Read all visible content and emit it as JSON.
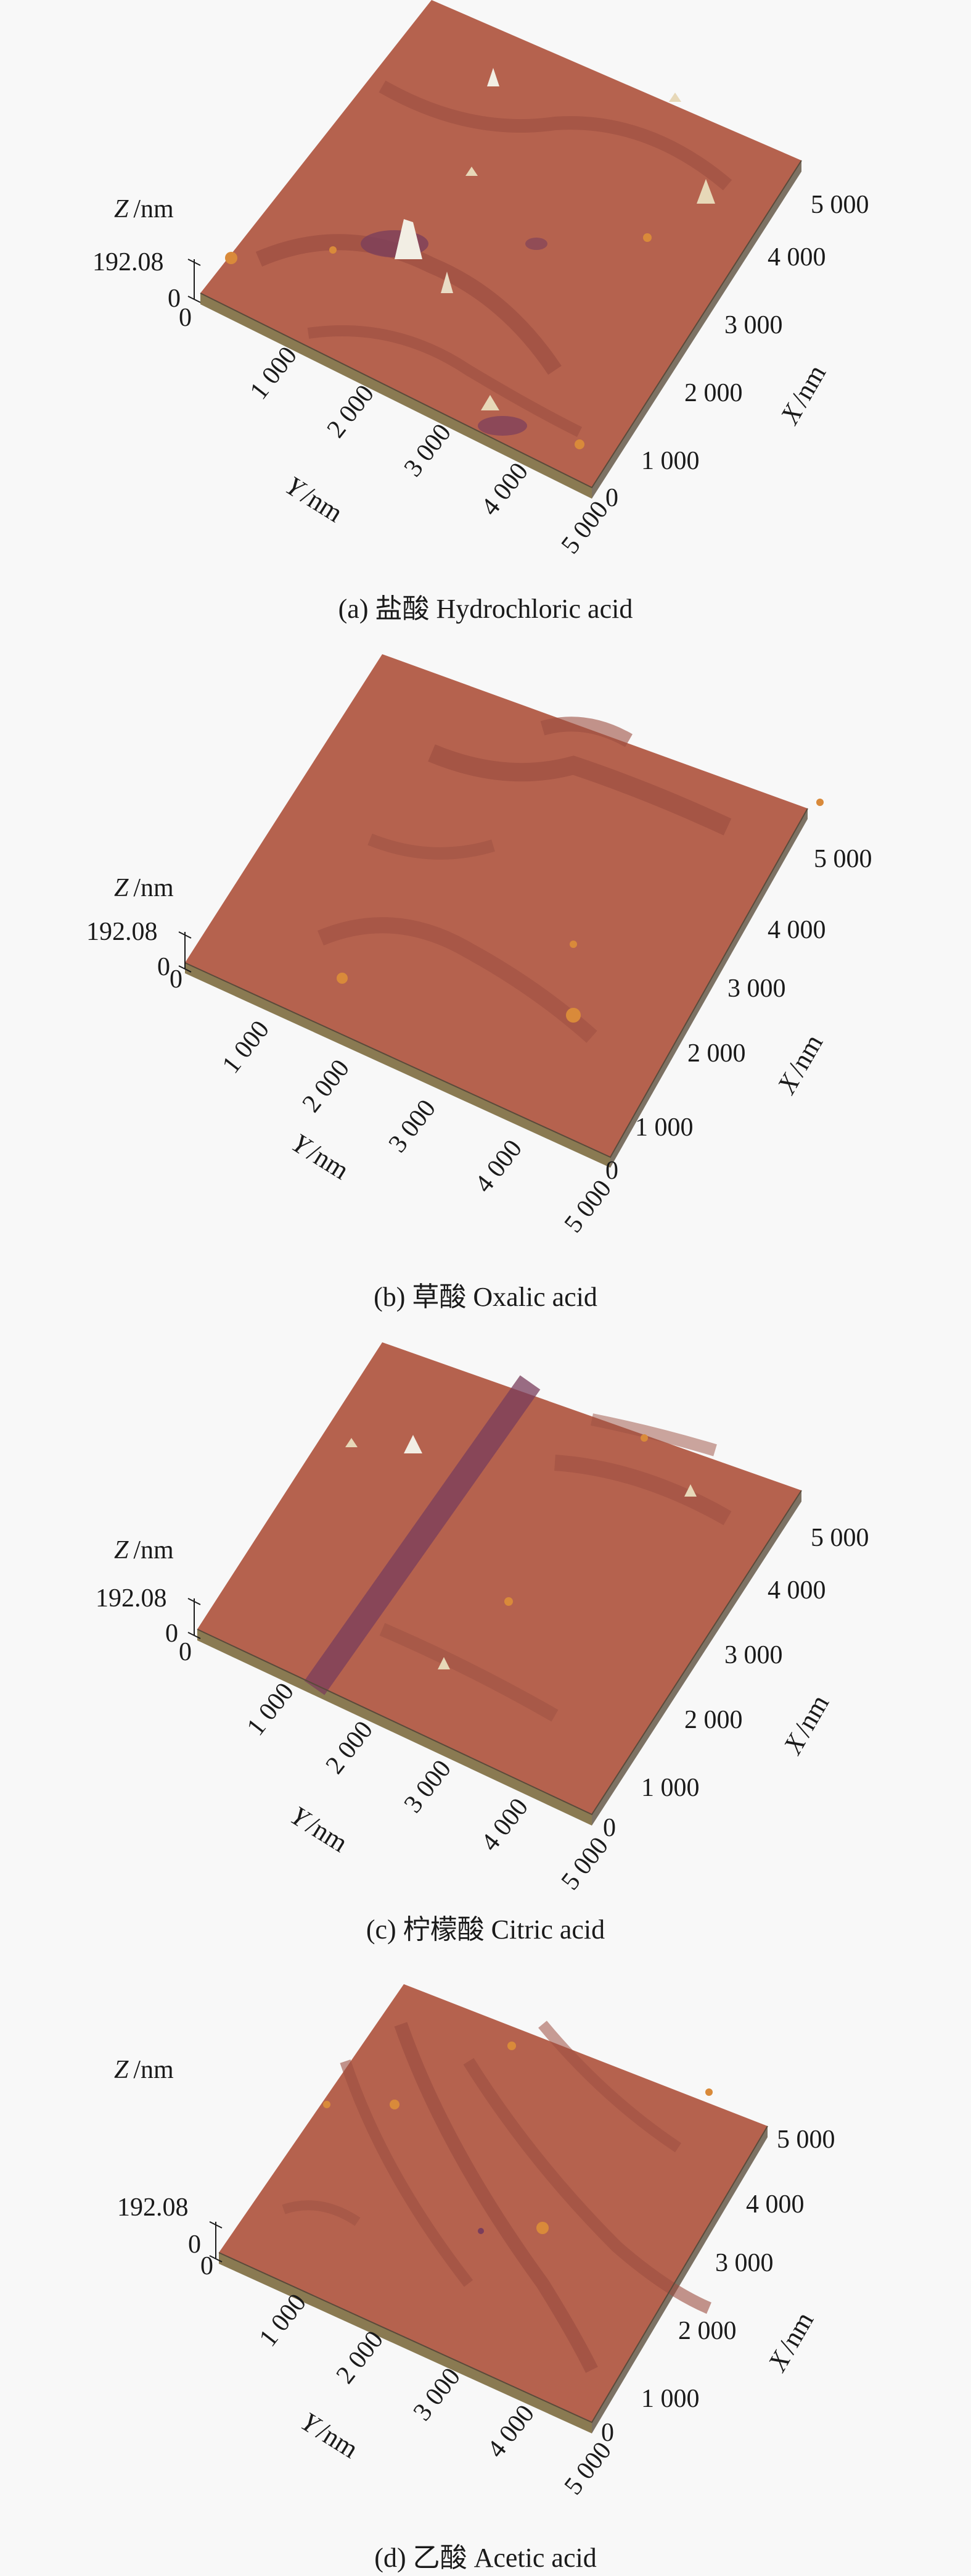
{
  "panels": [
    {
      "caption": "(a) 盐酸 Hydrochloric acid",
      "z_label_italic": "Z",
      "z_label_unit": "/nm",
      "z_max": "192.08",
      "z_min": "0",
      "y_origin": "0",
      "y_ticks": [
        "1 000",
        "2 000",
        "3 000",
        "4 000",
        "5 000"
      ],
      "y_label_italic": "Y",
      "y_label_unit": "/nm",
      "x_ticks": [
        "0",
        "1 000",
        "2 000",
        "3 000",
        "4 000",
        "5 000"
      ],
      "x_label_italic": "X",
      "x_label_unit": "/nm"
    },
    {
      "caption": "(b) 草酸 Oxalic acid",
      "z_label_italic": "Z",
      "z_label_unit": "/nm",
      "z_max": "192.08",
      "z_min": "0",
      "y_origin": "0",
      "y_ticks": [
        "1 000",
        "2 000",
        "3 000",
        "4 000",
        "5 000"
      ],
      "y_label_italic": "Y",
      "y_label_unit": "/nm",
      "x_ticks": [
        "0",
        "1 000",
        "2 000",
        "3 000",
        "4 000",
        "5 000"
      ],
      "x_label_italic": "X",
      "x_label_unit": "/nm"
    },
    {
      "caption": "(c) 柠檬酸 Citric acid",
      "z_label_italic": "Z",
      "z_label_unit": "/nm",
      "z_max": "192.08",
      "z_min": "0",
      "y_origin": "0",
      "y_ticks": [
        "1 000",
        "2 000",
        "3 000",
        "4 000",
        "5 000"
      ],
      "y_label_italic": "Y",
      "y_label_unit": "/nm",
      "x_ticks": [
        "0",
        "1 000",
        "2 000",
        "3 000",
        "4 000",
        "5 000"
      ],
      "x_label_italic": "X",
      "x_label_unit": "/nm"
    },
    {
      "caption": "(d) 乙酸 Acetic acid",
      "z_label_italic": "Z",
      "z_label_unit": "/nm",
      "z_max": "192.08",
      "z_min": "0",
      "y_origin": "0",
      "y_ticks": [
        "1 000",
        "2 000",
        "3 000",
        "4 000",
        "5 000"
      ],
      "y_label_italic": "Y",
      "y_label_unit": "/nm",
      "x_ticks": [
        "0",
        "1 000",
        "2 000",
        "3 000",
        "4 000",
        "5 000"
      ],
      "x_label_italic": "X",
      "x_label_unit": "/nm"
    }
  ],
  "colors": {
    "surface": "#b5624e",
    "surface_dark": "#9c4f41",
    "side_left": "#8a7a52",
    "side_right": "#7d7264",
    "peak": "#f2eee4",
    "spot": "#d98a3a",
    "purple": "#7a3d5c"
  }
}
